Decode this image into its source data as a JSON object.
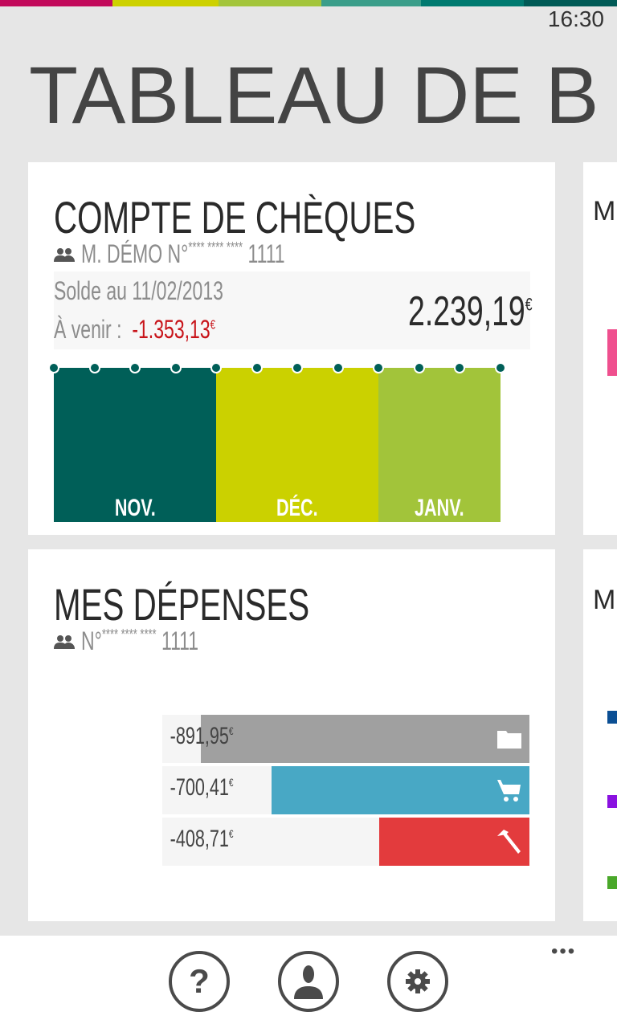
{
  "status_bar": {
    "time": "16:30",
    "accent_colors": [
      "#c2095b",
      "#cdd100",
      "#a3c53b",
      "#3b9e8a",
      "#007a70",
      "#005a56"
    ]
  },
  "page_title": "TABLEAU DE B",
  "account_card": {
    "title": "COMPTE DE CHÈQUES",
    "owner": "M.  DÉMO N°",
    "masked": "**** **** ****",
    "last_digits": "1111",
    "balance_label": "Solde au 11/02/2013",
    "upcoming_label": "À venir :",
    "upcoming_amount": "-1.353,13",
    "balance": "2.239,19",
    "currency": "€",
    "months": [
      {
        "label": "NOV.",
        "color": "#005f58"
      },
      {
        "label": "DÉC.",
        "color": "#cbd100"
      },
      {
        "label": "JANV.",
        "color": "#a2c43a"
      }
    ]
  },
  "expenses_card": {
    "title": "MES DÉPENSES",
    "owner": "N°",
    "masked": "**** **** ****",
    "last_digits": "1111",
    "currency": "€",
    "items": [
      {
        "amount": "-891,95",
        "value": 891.95,
        "color": "#a0a0a0",
        "icon": "folder-icon"
      },
      {
        "amount": "-700,41",
        "value": 700.41,
        "color": "#48a8c5",
        "icon": "cart-icon"
      },
      {
        "amount": "-408,71",
        "value": 408.71,
        "color": "#e33b3d",
        "icon": "hammer-icon"
      }
    ]
  },
  "right_cards": {
    "legend_colors": [
      "#0b4f94",
      "#8a11e0",
      "#4aa82a"
    ],
    "pink_tile": "#ef4f8e"
  },
  "app_bar": {
    "more": "•••",
    "buttons": [
      {
        "name": "help-button",
        "glyph": "?"
      },
      {
        "name": "profile-button"
      },
      {
        "name": "settings-button"
      }
    ]
  }
}
